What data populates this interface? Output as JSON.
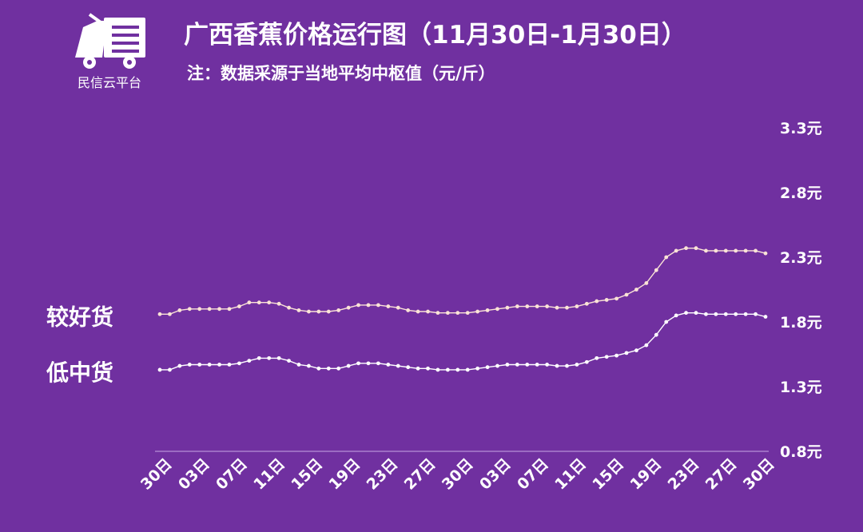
{
  "logo": {
    "text": "民信云平台",
    "icon": "delivery-truck-icon"
  },
  "header": {
    "title": "广西香蕉价格运行图（11月30日-1月30日）",
    "subtitle": "注：数据采源于当地平均中枢值（元/斤）"
  },
  "chart_data": {
    "type": "line",
    "ylim": [
      0.8,
      3.3
    ],
    "y_ticks": [
      "3.3元",
      "2.8元",
      "2.3元",
      "1.8元",
      "1.3元",
      "0.8元"
    ],
    "x_tick_labels": [
      "30日",
      "03日",
      "07日",
      "11日",
      "15日",
      "19日",
      "23日",
      "27日",
      "30日",
      "03日",
      "07日",
      "11日",
      "15日",
      "19日",
      "23日",
      "27日",
      "30日"
    ],
    "colors": {
      "upper_series": "#fbe3d6",
      "lower_series": "#ffffff",
      "axis": "#c9a6e4"
    },
    "series": [
      {
        "name": "较好货",
        "values": [
          1.86,
          1.86,
          1.89,
          1.9,
          1.9,
          1.9,
          1.9,
          1.9,
          1.92,
          1.95,
          1.95,
          1.95,
          1.94,
          1.91,
          1.89,
          1.88,
          1.88,
          1.88,
          1.89,
          1.91,
          1.93,
          1.93,
          1.93,
          1.92,
          1.91,
          1.89,
          1.88,
          1.88,
          1.87,
          1.87,
          1.87,
          1.87,
          1.88,
          1.89,
          1.9,
          1.91,
          1.92,
          1.92,
          1.92,
          1.92,
          1.91,
          1.91,
          1.92,
          1.94,
          1.96,
          1.97,
          1.98,
          2.01,
          2.05,
          2.1,
          2.2,
          2.3,
          2.35,
          2.37,
          2.37,
          2.35,
          2.35,
          2.35,
          2.35,
          2.35,
          2.35,
          2.33
        ]
      },
      {
        "name": "低中货",
        "values": [
          1.43,
          1.43,
          1.46,
          1.47,
          1.47,
          1.47,
          1.47,
          1.47,
          1.48,
          1.5,
          1.52,
          1.52,
          1.52,
          1.5,
          1.47,
          1.46,
          1.44,
          1.44,
          1.44,
          1.46,
          1.48,
          1.48,
          1.48,
          1.47,
          1.46,
          1.45,
          1.44,
          1.44,
          1.43,
          1.43,
          1.43,
          1.43,
          1.44,
          1.45,
          1.46,
          1.47,
          1.47,
          1.47,
          1.47,
          1.47,
          1.46,
          1.46,
          1.47,
          1.49,
          1.52,
          1.53,
          1.54,
          1.56,
          1.58,
          1.62,
          1.7,
          1.8,
          1.85,
          1.87,
          1.87,
          1.86,
          1.86,
          1.86,
          1.86,
          1.86,
          1.86,
          1.84
        ]
      }
    ]
  }
}
